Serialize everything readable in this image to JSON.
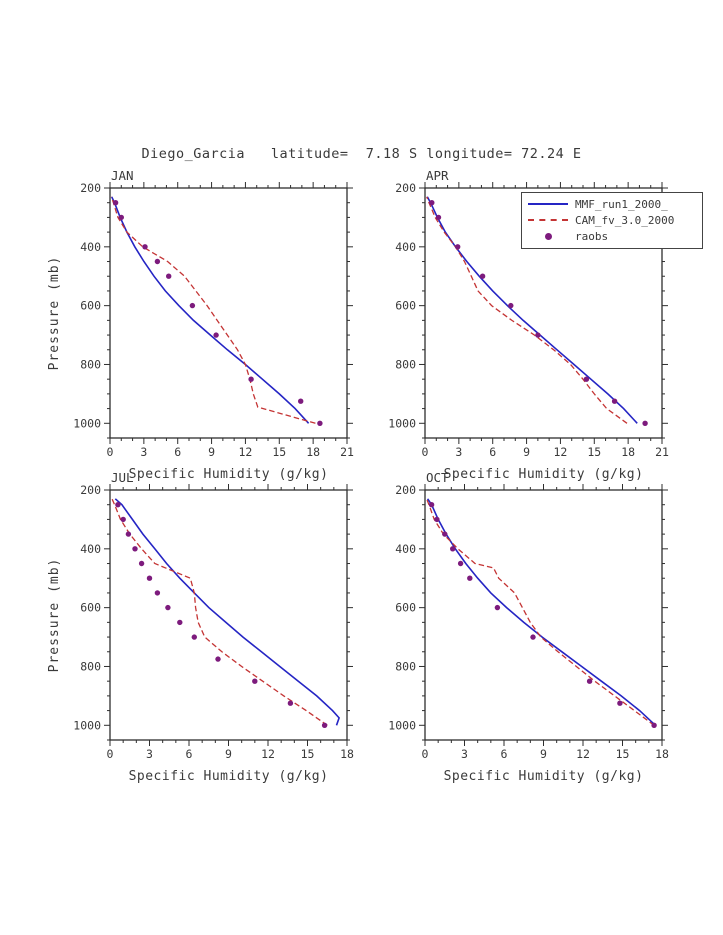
{
  "chart_data": {
    "type": "line",
    "title": "Diego_Garcia   latitude=  7.18 S longitude= 72.24 E",
    "xlabel": "Specific Humidity (g/kg)",
    "ylabel": "Pressure (mb)",
    "grid": false,
    "legend_position": "top-right",
    "y_axis": {
      "min": 200,
      "max": 1050,
      "major_ticks": [
        200,
        400,
        600,
        800,
        1000
      ],
      "minor_step": 50,
      "inverted": true
    },
    "colors": {
      "mmf": "#2525c4",
      "cam": "#c43434",
      "raobs": "#7d1b7d",
      "axis": "#2e2e2e",
      "text": "#3a3a3a"
    },
    "legend": [
      {
        "label": "MMF_run1_2000_",
        "style": "solid-line",
        "color": "mmf"
      },
      {
        "label": "CAM_fv_3.0_2000",
        "style": "dashed-line",
        "color": "cam"
      },
      {
        "label": "raobs",
        "style": "dot",
        "color": "raobs"
      }
    ],
    "panels": [
      {
        "label": "JAN",
        "xlim": [
          0,
          21
        ],
        "xticks": [
          0,
          3,
          6,
          9,
          12,
          15,
          18,
          21
        ],
        "series": [
          {
            "name": "MMF_run1_2000_",
            "style": "solid",
            "color": "mmf",
            "points": [
              [
                17.6,
                1000
              ],
              [
                16.4,
                950
              ],
              [
                15.0,
                900
              ],
              [
                13.5,
                850
              ],
              [
                12.0,
                800
              ],
              [
                10.4,
                750
              ],
              [
                8.9,
                700
              ],
              [
                7.4,
                650
              ],
              [
                6.1,
                600
              ],
              [
                4.9,
                550
              ],
              [
                3.9,
                500
              ],
              [
                3.0,
                450
              ],
              [
                2.2,
                400
              ],
              [
                1.5,
                350
              ],
              [
                0.9,
                300
              ],
              [
                0.4,
                250
              ],
              [
                0.15,
                230
              ]
            ]
          },
          {
            "name": "CAM_fv_3.0_2000",
            "style": "dashed",
            "color": "cam",
            "points": [
              [
                18.2,
                1000
              ],
              [
                13.1,
                945
              ],
              [
                12.7,
                900
              ],
              [
                12.4,
                850
              ],
              [
                12.0,
                800
              ],
              [
                11.3,
                750
              ],
              [
                10.4,
                700
              ],
              [
                9.5,
                650
              ],
              [
                8.6,
                600
              ],
              [
                7.6,
                550
              ],
              [
                6.6,
                500
              ],
              [
                5.1,
                450
              ],
              [
                2.9,
                400
              ],
              [
                1.5,
                350
              ],
              [
                0.7,
                300
              ],
              [
                0.3,
                250
              ],
              [
                0.12,
                230
              ]
            ]
          },
          {
            "name": "raobs",
            "style": "dots",
            "color": "raobs",
            "points": [
              [
                18.6,
                1000
              ],
              [
                16.9,
                925
              ],
              [
                12.5,
                850
              ],
              [
                9.4,
                700
              ],
              [
                7.3,
                600
              ],
              [
                5.2,
                500
              ],
              [
                4.2,
                450
              ],
              [
                3.1,
                400
              ],
              [
                1.0,
                300
              ],
              [
                0.5,
                250
              ]
            ]
          }
        ]
      },
      {
        "label": "APR",
        "xlim": [
          0,
          21
        ],
        "xticks": [
          0,
          3,
          6,
          9,
          12,
          15,
          18,
          21
        ],
        "series": [
          {
            "name": "MMF_run1_2000_",
            "style": "solid",
            "color": "mmf",
            "points": [
              [
                18.8,
                1000
              ],
              [
                17.6,
                950
              ],
              [
                16.2,
                900
              ],
              [
                14.7,
                850
              ],
              [
                13.2,
                800
              ],
              [
                11.7,
                750
              ],
              [
                10.2,
                700
              ],
              [
                8.7,
                650
              ],
              [
                7.3,
                600
              ],
              [
                6.0,
                550
              ],
              [
                4.8,
                500
              ],
              [
                3.7,
                450
              ],
              [
                2.7,
                400
              ],
              [
                1.8,
                350
              ],
              [
                1.1,
                300
              ],
              [
                0.5,
                250
              ],
              [
                0.2,
                230
              ]
            ]
          },
          {
            "name": "CAM_fv_3.0_2000",
            "style": "dashed",
            "color": "cam",
            "points": [
              [
                17.9,
                1000
              ],
              [
                16.1,
                950
              ],
              [
                15.0,
                900
              ],
              [
                14.0,
                850
              ],
              [
                12.9,
                800
              ],
              [
                11.4,
                750
              ],
              [
                9.7,
                700
              ],
              [
                7.7,
                650
              ],
              [
                5.9,
                600
              ],
              [
                4.7,
                550
              ],
              [
                4.1,
                500
              ],
              [
                3.5,
                450
              ],
              [
                2.7,
                400
              ],
              [
                1.7,
                350
              ],
              [
                0.9,
                300
              ],
              [
                0.35,
                250
              ],
              [
                0.15,
                230
              ]
            ]
          },
          {
            "name": "raobs",
            "style": "dots",
            "color": "raobs",
            "points": [
              [
                19.5,
                1000
              ],
              [
                16.8,
                925
              ],
              [
                14.3,
                850
              ],
              [
                10.0,
                700
              ],
              [
                7.6,
                600
              ],
              [
                5.1,
                500
              ],
              [
                2.9,
                400
              ],
              [
                1.2,
                300
              ],
              [
                0.6,
                250
              ]
            ]
          }
        ]
      },
      {
        "label": "JUL",
        "xlim": [
          0,
          18
        ],
        "xticks": [
          0,
          3,
          6,
          9,
          12,
          15,
          18
        ],
        "series": [
          {
            "name": "MMF_run1_2000_",
            "style": "solid",
            "color": "mmf",
            "points": [
              [
                17.2,
                1000
              ],
              [
                17.4,
                975
              ],
              [
                16.9,
                950
              ],
              [
                15.7,
                900
              ],
              [
                14.3,
                850
              ],
              [
                12.9,
                800
              ],
              [
                11.5,
                750
              ],
              [
                10.1,
                700
              ],
              [
                8.8,
                650
              ],
              [
                7.5,
                600
              ],
              [
                6.4,
                550
              ],
              [
                5.3,
                500
              ],
              [
                4.3,
                450
              ],
              [
                3.4,
                400
              ],
              [
                2.5,
                350
              ],
              [
                1.7,
                300
              ],
              [
                0.9,
                250
              ],
              [
                0.4,
                230
              ]
            ]
          },
          {
            "name": "CAM_fv_3.0_2000",
            "style": "dashed",
            "color": "cam",
            "points": [
              [
                16.5,
                1000
              ],
              [
                14.9,
                950
              ],
              [
                13.2,
                900
              ],
              [
                11.6,
                850
              ],
              [
                10.0,
                800
              ],
              [
                8.5,
                750
              ],
              [
                7.2,
                700
              ],
              [
                6.7,
                650
              ],
              [
                6.5,
                600
              ],
              [
                6.4,
                550
              ],
              [
                6.1,
                500
              ],
              [
                3.4,
                450
              ],
              [
                2.4,
                400
              ],
              [
                1.5,
                350
              ],
              [
                0.8,
                300
              ],
              [
                0.35,
                250
              ],
              [
                0.15,
                230
              ]
            ]
          },
          {
            "name": "raobs",
            "style": "dots",
            "color": "raobs",
            "points": [
              [
                16.3,
                1000
              ],
              [
                13.7,
                925
              ],
              [
                11.0,
                850
              ],
              [
                8.2,
                775
              ],
              [
                6.4,
                700
              ],
              [
                5.3,
                650
              ],
              [
                4.4,
                600
              ],
              [
                3.6,
                550
              ],
              [
                3.0,
                500
              ],
              [
                2.4,
                450
              ],
              [
                1.9,
                400
              ],
              [
                1.4,
                350
              ],
              [
                1.0,
                300
              ],
              [
                0.6,
                250
              ]
            ]
          }
        ]
      },
      {
        "label": "OCT",
        "xlim": [
          0,
          18
        ],
        "xticks": [
          0,
          3,
          6,
          9,
          12,
          15,
          18
        ],
        "series": [
          {
            "name": "MMF_run1_2000_",
            "style": "solid",
            "color": "mmf",
            "points": [
              [
                17.5,
                1000
              ],
              [
                16.3,
                950
              ],
              [
                14.9,
                900
              ],
              [
                13.4,
                850
              ],
              [
                11.9,
                800
              ],
              [
                10.4,
                750
              ],
              [
                8.9,
                700
              ],
              [
                7.5,
                650
              ],
              [
                6.2,
                600
              ],
              [
                5.0,
                550
              ],
              [
                4.0,
                500
              ],
              [
                3.1,
                450
              ],
              [
                2.3,
                400
              ],
              [
                1.6,
                350
              ],
              [
                1.0,
                300
              ],
              [
                0.5,
                250
              ],
              [
                0.2,
                230
              ]
            ]
          },
          {
            "name": "CAM_fv_3.0_2000",
            "style": "dashed",
            "color": "cam",
            "points": [
              [
                17.4,
                1000
              ],
              [
                15.9,
                950
              ],
              [
                14.4,
                900
              ],
              [
                12.9,
                850
              ],
              [
                11.5,
                800
              ],
              [
                10.1,
                750
              ],
              [
                8.8,
                700
              ],
              [
                8.0,
                650
              ],
              [
                7.4,
                600
              ],
              [
                6.8,
                550
              ],
              [
                5.6,
                500
              ],
              [
                5.2,
                465
              ],
              [
                3.8,
                450
              ],
              [
                2.5,
                400
              ],
              [
                1.4,
                350
              ],
              [
                0.7,
                300
              ],
              [
                0.3,
                250
              ],
              [
                0.12,
                230
              ]
            ]
          },
          {
            "name": "raobs",
            "style": "dots",
            "color": "raobs",
            "points": [
              [
                17.4,
                1000
              ],
              [
                14.8,
                925
              ],
              [
                12.5,
                850
              ],
              [
                8.2,
                700
              ],
              [
                5.5,
                600
              ],
              [
                3.4,
                500
              ],
              [
                2.7,
                450
              ],
              [
                2.1,
                400
              ],
              [
                1.5,
                350
              ],
              [
                0.9,
                300
              ],
              [
                0.5,
                250
              ]
            ]
          }
        ]
      }
    ]
  }
}
